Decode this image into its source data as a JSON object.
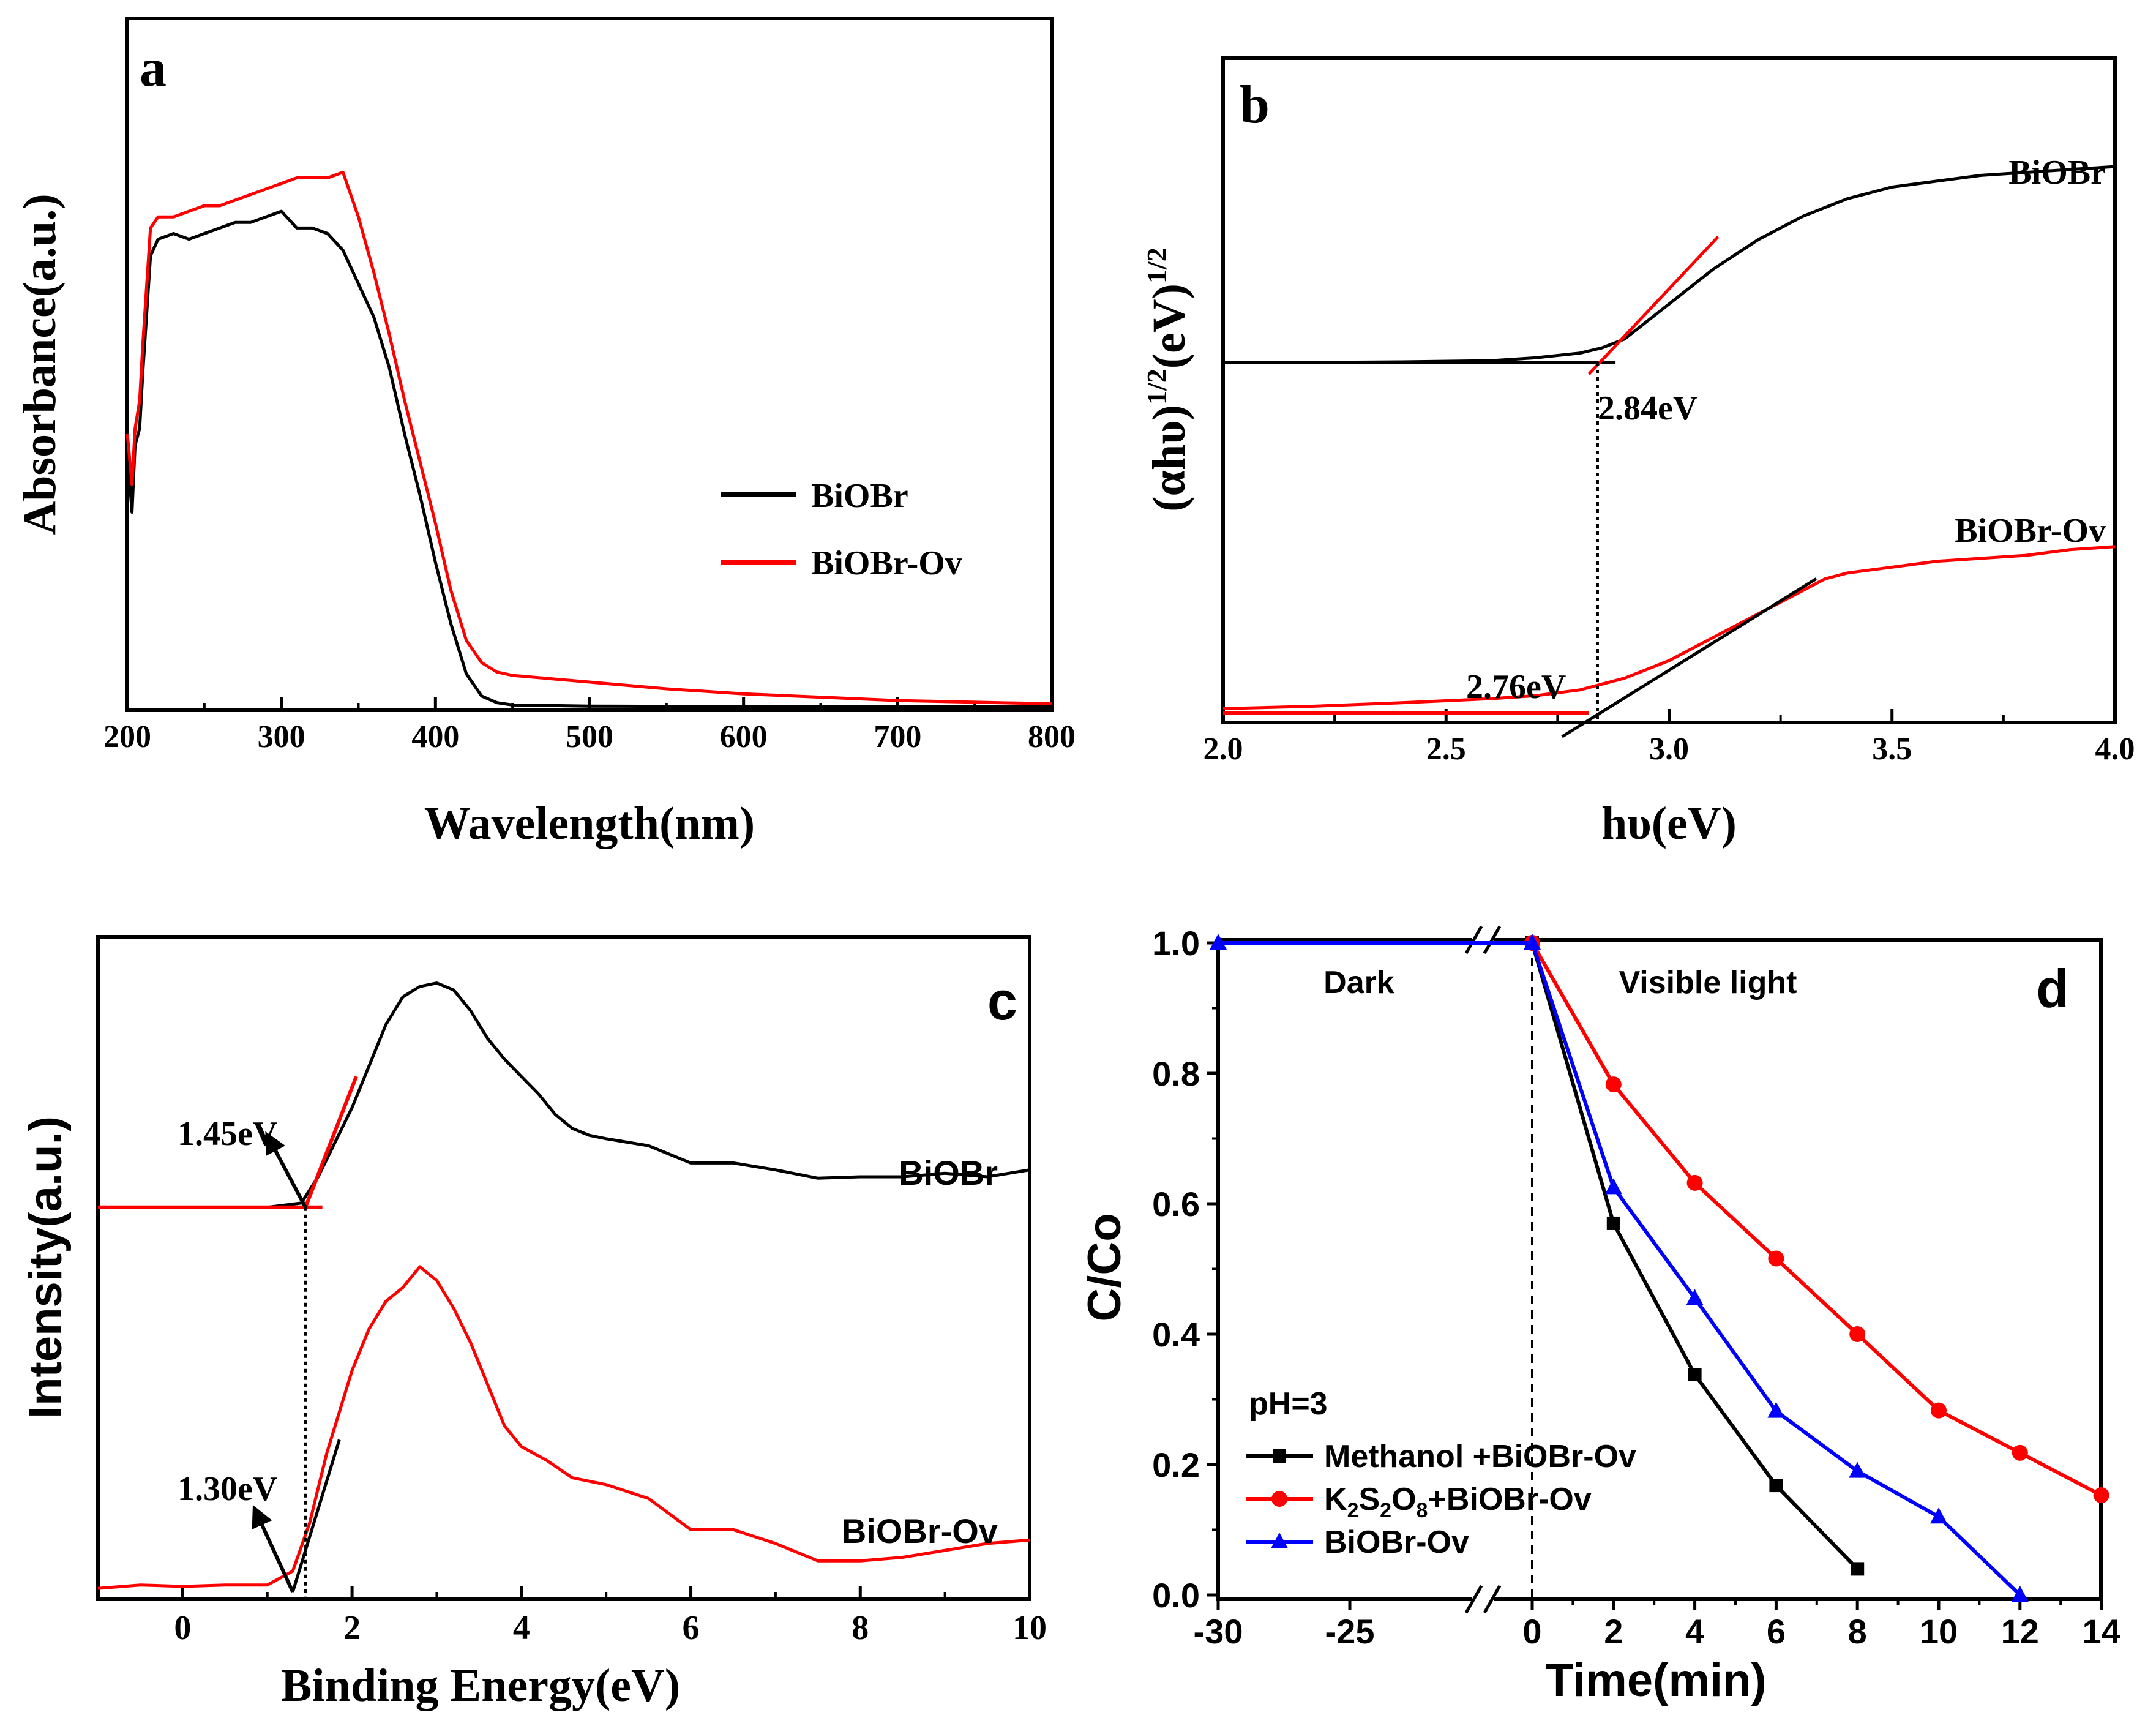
{
  "chart_data": [
    {
      "panel": "a",
      "type": "line",
      "panel_label": "a",
      "xlabel": "Wavelength(nm)",
      "ylabel": "Absorbance(a.u.)",
      "xlim": [
        200,
        800
      ],
      "ylim": [
        0,
        1
      ],
      "x_ticks": [
        "200",
        "300",
        "400",
        "500",
        "600",
        "700",
        "800"
      ],
      "y_ticks_shown": false,
      "legend_position": "center-right",
      "series": [
        {
          "name": "BiOBr",
          "color": "#000000",
          "x": [
            200,
            203,
            205,
            208,
            210,
            215,
            220,
            230,
            240,
            250,
            260,
            270,
            280,
            290,
            300,
            310,
            320,
            330,
            340,
            350,
            360,
            370,
            380,
            390,
            400,
            410,
            420,
            430,
            440,
            450,
            500,
            600,
            700,
            800
          ],
          "y": [
            0.46,
            0.35,
            0.47,
            0.5,
            0.6,
            0.81,
            0.84,
            0.85,
            0.84,
            0.85,
            0.86,
            0.87,
            0.87,
            0.88,
            0.89,
            0.86,
            0.86,
            0.85,
            0.82,
            0.76,
            0.7,
            0.61,
            0.49,
            0.38,
            0.26,
            0.15,
            0.06,
            0.02,
            0.008,
            0.004,
            0.002,
            0.001,
            0.001,
            0.001
          ]
        },
        {
          "name": "BiOBr-Ov",
          "color": "#ff0000",
          "x": [
            200,
            203,
            205,
            208,
            210,
            215,
            220,
            230,
            240,
            250,
            260,
            270,
            280,
            290,
            300,
            310,
            320,
            330,
            340,
            350,
            360,
            370,
            380,
            390,
            400,
            410,
            420,
            430,
            440,
            450,
            500,
            550,
            600,
            700,
            800
          ],
          "y": [
            0.49,
            0.4,
            0.5,
            0.55,
            0.65,
            0.86,
            0.88,
            0.88,
            0.89,
            0.9,
            0.9,
            0.91,
            0.92,
            0.93,
            0.94,
            0.95,
            0.95,
            0.95,
            0.96,
            0.88,
            0.78,
            0.67,
            0.55,
            0.44,
            0.33,
            0.21,
            0.12,
            0.08,
            0.063,
            0.057,
            0.045,
            0.033,
            0.024,
            0.012,
            0.006
          ]
        }
      ]
    },
    {
      "panel": "b",
      "type": "line",
      "panel_label": "b",
      "xlabel": "hυ(eV)",
      "ylabel_main": "(αhυ)",
      "ylabel_sup1": "1/2",
      "ylabel_mid": "(eV)",
      "ylabel_sup2": "1/2",
      "xlim": [
        2.0,
        4.0
      ],
      "ylim": [
        0,
        1
      ],
      "x_ticks": [
        "2.0",
        "2.5",
        "3.0",
        "3.5",
        "4.0"
      ],
      "y_ticks_shown": false,
      "annotations": [
        "2.84eV",
        "2.76eV"
      ],
      "series": [
        {
          "name": "BiOBr",
          "color": "#000000",
          "x": [
            2.0,
            2.2,
            2.4,
            2.6,
            2.7,
            2.8,
            2.85,
            2.9,
            3.0,
            3.1,
            3.2,
            3.3,
            3.4,
            3.5,
            3.6,
            3.7,
            3.8,
            3.9,
            4.0
          ],
          "y": [
            0.6,
            0.6,
            0.601,
            0.603,
            0.608,
            0.616,
            0.625,
            0.64,
            0.7,
            0.76,
            0.81,
            0.85,
            0.88,
            0.9,
            0.91,
            0.92,
            0.925,
            0.93,
            0.935
          ]
        },
        {
          "name": "BiOBr-Ov",
          "color": "#ff0000",
          "x": [
            2.0,
            2.2,
            2.4,
            2.6,
            2.7,
            2.8,
            2.9,
            3.0,
            3.1,
            3.2,
            3.3,
            3.35,
            3.4,
            3.5,
            3.6,
            3.7,
            3.8,
            3.9,
            4.0
          ],
          "y": [
            0.008,
            0.012,
            0.018,
            0.025,
            0.03,
            0.04,
            0.06,
            0.09,
            0.13,
            0.17,
            0.21,
            0.23,
            0.24,
            0.25,
            0.26,
            0.265,
            0.27,
            0.28,
            0.285
          ]
        }
      ],
      "series_labels": [
        "BiOBr",
        "BiOBr-Ov"
      ]
    },
    {
      "panel": "c",
      "type": "line",
      "panel_label": "c",
      "xlabel": "Binding Energy(eV)",
      "ylabel": "Intensity(a.u.)",
      "xlim": [
        -1,
        10
      ],
      "ylim": [
        0,
        1
      ],
      "x_ticks": [
        "0",
        "2",
        "4",
        "6",
        "8",
        "10"
      ],
      "y_ticks_shown": false,
      "annotations": [
        "1.45eV",
        "1.30eV"
      ],
      "series_labels": [
        "BiOBr",
        "BiOBr-Ov"
      ],
      "series": [
        {
          "name": "BiOBr",
          "color": "#000000",
          "x": [
            1.0,
            1.2,
            1.4,
            1.6,
            1.8,
            2.0,
            2.2,
            2.4,
            2.6,
            2.8,
            3.0,
            3.2,
            3.4,
            3.6,
            3.8,
            4.0,
            4.2,
            4.4,
            4.6,
            4.8,
            5.0,
            5.5,
            6.0,
            6.5,
            7.0,
            7.5,
            8.0,
            8.5,
            9.0,
            9.5,
            10.0
          ],
          "y": [
            0.556,
            0.559,
            0.562,
            0.6,
            0.65,
            0.7,
            0.76,
            0.82,
            0.86,
            0.875,
            0.88,
            0.87,
            0.84,
            0.8,
            0.77,
            0.745,
            0.72,
            0.69,
            0.67,
            0.66,
            0.655,
            0.645,
            0.62,
            0.62,
            0.61,
            0.598,
            0.6,
            0.6,
            0.605,
            0.6,
            0.61
          ]
        },
        {
          "name": "BiOBr-Ov",
          "color": "#ff0000",
          "x": [
            -1.0,
            -0.5,
            0.0,
            0.5,
            1.0,
            1.3,
            1.5,
            1.7,
            2.0,
            2.2,
            2.4,
            2.6,
            2.8,
            3.0,
            3.2,
            3.4,
            3.6,
            3.8,
            4.0,
            4.3,
            4.6,
            5.0,
            5.5,
            6.0,
            6.5,
            7.0,
            7.5,
            8.0,
            8.5,
            9.0,
            9.5,
            10.0
          ],
          "y": [
            0.005,
            0.01,
            0.008,
            0.01,
            0.01,
            0.03,
            0.1,
            0.2,
            0.32,
            0.38,
            0.42,
            0.44,
            0.47,
            0.45,
            0.41,
            0.36,
            0.3,
            0.24,
            0.21,
            0.19,
            0.165,
            0.155,
            0.135,
            0.09,
            0.09,
            0.07,
            0.045,
            0.045,
            0.05,
            0.06,
            0.07,
            0.075
          ]
        }
      ]
    },
    {
      "panel": "d",
      "type": "line",
      "panel_label": "d",
      "xlabel": "Time(min)",
      "ylabel": "C/Co",
      "ylim": [
        0,
        1.0
      ],
      "x_ticks": [
        "-30",
        "-25",
        "0",
        "2",
        "4",
        "6",
        "8",
        "10",
        "12",
        "14"
      ],
      "y_ticks": [
        "0.0",
        "0.2",
        "0.4",
        "0.6",
        "0.8",
        "1.0"
      ],
      "region_labels": [
        "Dark",
        "Visible light"
      ],
      "condition": "pH=3",
      "series": [
        {
          "name": "Methanol +BiOBr-Ov",
          "color": "#000000",
          "marker": "square",
          "x": [
            0,
            2,
            4,
            6,
            8
          ],
          "y": [
            1.0,
            0.57,
            0.338,
            0.168,
            0.04
          ]
        },
        {
          "name": "K2S2O8+BiOBr-Ov",
          "name_parts": [
            "K",
            "2",
            "S",
            "2",
            "O",
            "8",
            "+BiOBr-Ov"
          ],
          "color": "#ff0000",
          "marker": "circle",
          "x": [
            0,
            2,
            4,
            6,
            8,
            10,
            12,
            14
          ],
          "y": [
            1.0,
            0.783,
            0.632,
            0.516,
            0.4,
            0.283,
            0.218,
            0.153
          ]
        },
        {
          "name": "BiOBr-Ov",
          "color": "#0000ff",
          "marker": "triangle",
          "x": [
            -30,
            0,
            2,
            4,
            6,
            8,
            10,
            12
          ],
          "y": [
            1.0,
            1.0,
            0.625,
            0.455,
            0.282,
            0.19,
            0.12,
            0.0
          ]
        }
      ]
    }
  ]
}
